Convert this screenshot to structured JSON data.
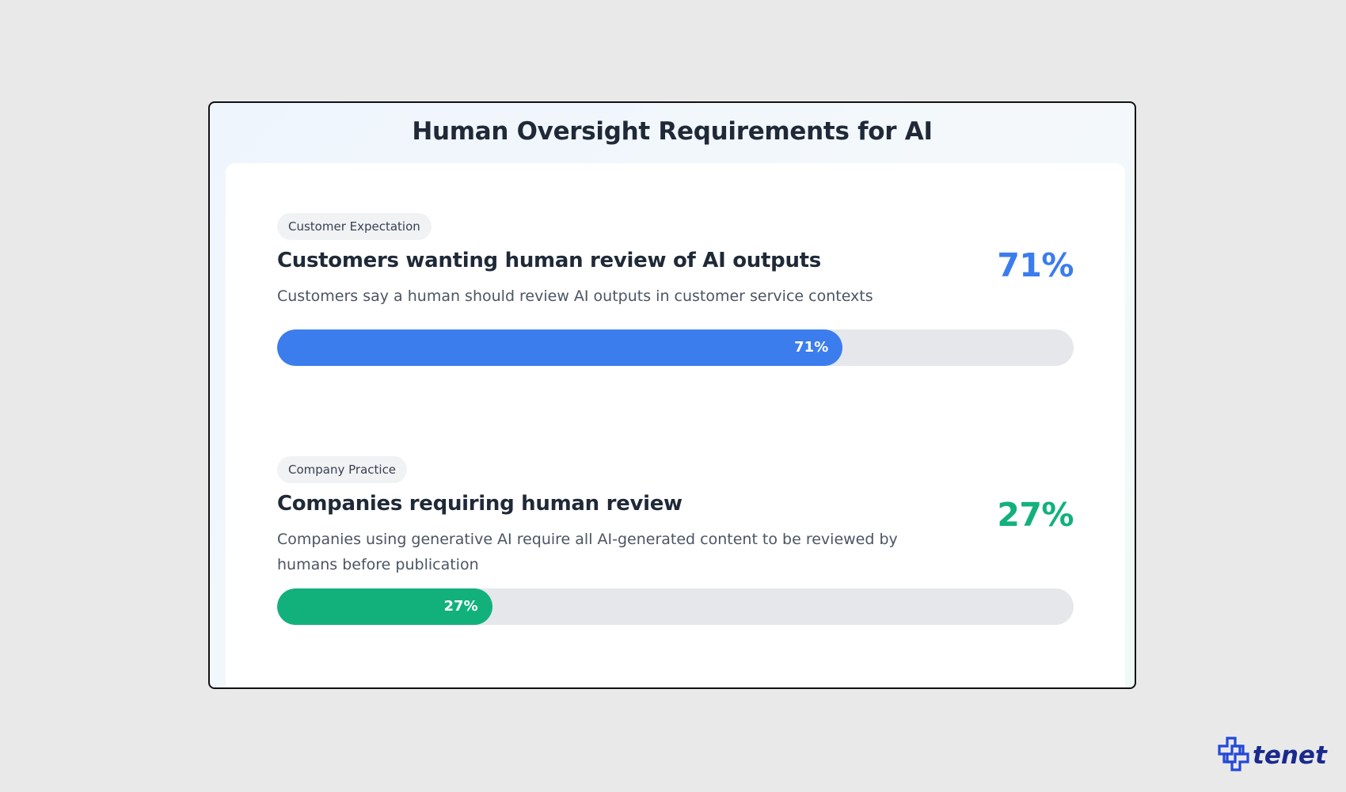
{
  "header": {
    "title": "Human Oversight Requirements for AI"
  },
  "colors": {
    "customer_accent": "#3b7ded",
    "company_accent": "#12b17c",
    "track": "#e5e7eb"
  },
  "chart_data": {
    "type": "bar",
    "title": "Human Oversight Requirements for AI",
    "categories": [
      "Customers wanting human review of AI outputs",
      "Companies requiring human review"
    ],
    "values": [
      71,
      27
    ],
    "unit": "%",
    "ylim": [
      0,
      100
    ]
  },
  "metrics": [
    {
      "badge": "Customer Expectation",
      "title": "Customers wanting human review of AI outputs",
      "description": "Customers say a human should review AI outputs in customer service contexts",
      "value_text": "71%",
      "bar_label": "71%",
      "value": 71
    },
    {
      "badge": "Company Practice",
      "title": "Companies requiring human review",
      "description": "Companies using generative AI require all AI-generated content to be reviewed by humans before publication",
      "value_text": "27%",
      "bar_label": "27%",
      "value": 27
    }
  ],
  "branding": {
    "logo_text": "tenet",
    "logo_icon": "tenet-cross-logo-icon"
  }
}
